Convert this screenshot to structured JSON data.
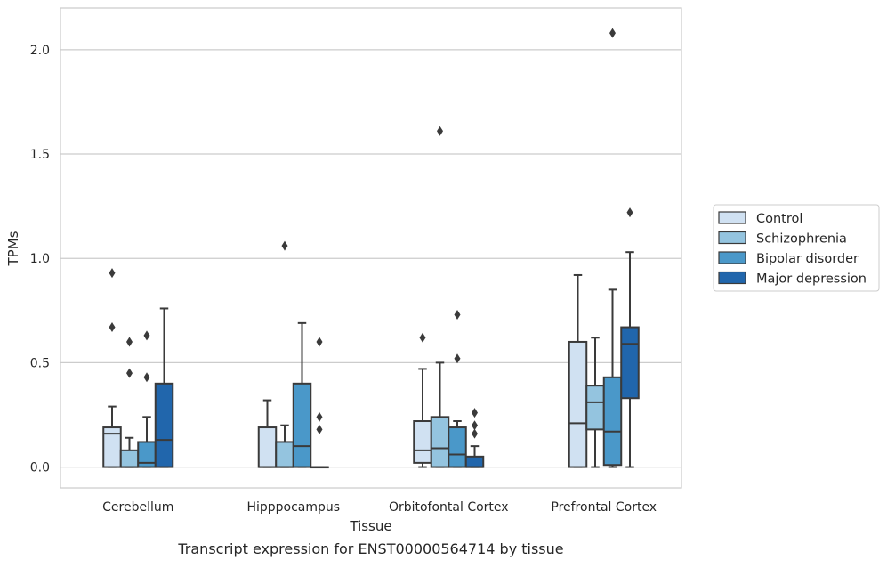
{
  "chart_data": {
    "type": "boxplot",
    "caption": "Transcript expression for ENST00000564714 by tissue",
    "xlabel": "Tissue",
    "ylabel": "TPMs",
    "ylim": [
      -0.1,
      2.2
    ],
    "yticks": [
      0.0,
      0.5,
      1.0,
      1.5,
      2.0
    ],
    "ytick_labels": [
      "0.0",
      "0.5",
      "1.0",
      "1.5",
      "2.0"
    ],
    "grid": "horizontal",
    "legend_position": "outside-right",
    "categories": [
      "Cerebellum",
      "Hipppocampus",
      "Orbitofontal Cortex",
      "Prefrontal Cortex"
    ],
    "series": [
      {
        "name": "Control",
        "color": "#d0e1f2",
        "boxes": [
          {
            "whisker_low": 0.0,
            "q1": 0.0,
            "median": 0.16,
            "q3": 0.19,
            "whisker_high": 0.29,
            "outliers": [
              0.67,
              0.93
            ]
          },
          {
            "whisker_low": 0.0,
            "q1": 0.0,
            "median": 0.0,
            "q3": 0.19,
            "whisker_high": 0.32,
            "outliers": []
          },
          {
            "whisker_low": 0.0,
            "q1": 0.02,
            "median": 0.08,
            "q3": 0.22,
            "whisker_high": 0.47,
            "outliers": [
              0.62
            ]
          },
          {
            "whisker_low": 0.0,
            "q1": 0.0,
            "median": 0.21,
            "q3": 0.6,
            "whisker_high": 0.92,
            "outliers": []
          }
        ]
      },
      {
        "name": "Schizophrenia",
        "color": "#94c4df",
        "boxes": [
          {
            "whisker_low": 0.0,
            "q1": 0.0,
            "median": 0.0,
            "q3": 0.08,
            "whisker_high": 0.14,
            "outliers": [
              0.45,
              0.6
            ]
          },
          {
            "whisker_low": 0.0,
            "q1": 0.0,
            "median": 0.0,
            "q3": 0.12,
            "whisker_high": 0.2,
            "outliers": [
              1.06
            ]
          },
          {
            "whisker_low": 0.0,
            "q1": 0.0,
            "median": 0.09,
            "q3": 0.24,
            "whisker_high": 0.5,
            "outliers": [
              1.61
            ]
          },
          {
            "whisker_low": 0.0,
            "q1": 0.18,
            "median": 0.31,
            "q3": 0.39,
            "whisker_high": 0.62,
            "outliers": []
          }
        ]
      },
      {
        "name": "Bipolar disorder",
        "color": "#4a98c9",
        "boxes": [
          {
            "whisker_low": 0.0,
            "q1": 0.0,
            "median": 0.02,
            "q3": 0.12,
            "whisker_high": 0.24,
            "outliers": [
              0.43,
              0.63
            ]
          },
          {
            "whisker_low": 0.0,
            "q1": 0.0,
            "median": 0.1,
            "q3": 0.4,
            "whisker_high": 0.69,
            "outliers": []
          },
          {
            "whisker_low": 0.0,
            "q1": 0.0,
            "median": 0.06,
            "q3": 0.19,
            "whisker_high": 0.22,
            "outliers": [
              0.52,
              0.73
            ]
          },
          {
            "whisker_low": 0.0,
            "q1": 0.01,
            "median": 0.17,
            "q3": 0.43,
            "whisker_high": 0.85,
            "outliers": [
              2.08
            ]
          }
        ]
      },
      {
        "name": "Major depression",
        "color": "#2166ac",
        "boxes": [
          {
            "whisker_low": 0.0,
            "q1": 0.0,
            "median": 0.13,
            "q3": 0.4,
            "whisker_high": 0.76,
            "outliers": []
          },
          {
            "whisker_low": 0.0,
            "q1": 0.0,
            "median": 0.0,
            "q3": 0.0,
            "whisker_high": 0.0,
            "outliers": [
              0.18,
              0.24,
              0.6
            ]
          },
          {
            "whisker_low": 0.0,
            "q1": 0.0,
            "median": 0.0,
            "q3": 0.05,
            "whisker_high": 0.1,
            "outliers": [
              0.16,
              0.2,
              0.26
            ]
          },
          {
            "whisker_low": 0.0,
            "q1": 0.33,
            "median": 0.59,
            "q3": 0.67,
            "whisker_high": 1.03,
            "outliers": [
              1.22
            ]
          }
        ]
      }
    ]
  }
}
